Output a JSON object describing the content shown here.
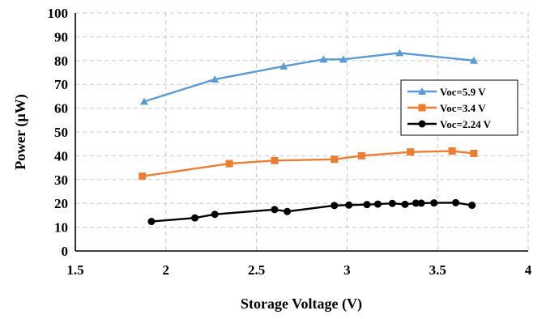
{
  "chart_data": {
    "type": "line",
    "title": "",
    "xlabel": "Storage Voltage (V)",
    "ylabel": "Power (µW)",
    "xlim": [
      1.5,
      4
    ],
    "ylim": [
      0,
      100
    ],
    "x_ticks": [
      1.5,
      2,
      2.5,
      3,
      3.5,
      4
    ],
    "x_tick_labels": [
      "1.5",
      "2",
      "2.5",
      "3",
      "3.5",
      "4"
    ],
    "y_ticks": [
      0,
      10,
      20,
      30,
      40,
      50,
      60,
      70,
      80,
      90,
      100
    ],
    "y_tick_labels": [
      "0",
      "10",
      "20",
      "30",
      "40",
      "50",
      "60",
      "70",
      "80",
      "90",
      "100"
    ],
    "grid": true,
    "legend_position": "right",
    "series": [
      {
        "name": "Voc=5.9 V",
        "color": "#5b9bd5",
        "marker": "triangle",
        "x": [
          1.88,
          2.27,
          2.65,
          2.87,
          2.98,
          3.29,
          3.7
        ],
        "y": [
          62.8,
          72.1,
          77.6,
          80.5,
          80.5,
          83.2,
          80.0
        ]
      },
      {
        "name": "Voc=3.4 V",
        "color": "#ed7d31",
        "marker": "square",
        "x": [
          1.87,
          2.35,
          2.6,
          2.93,
          3.08,
          3.35,
          3.58,
          3.7
        ],
        "y": [
          31.4,
          36.7,
          38.0,
          38.5,
          40.0,
          41.6,
          42.0,
          41.0
        ]
      },
      {
        "name": "Voc=2.24 V",
        "color": "#000000",
        "marker": "circle",
        "x": [
          1.92,
          2.16,
          2.27,
          2.6,
          2.67,
          2.93,
          3.01,
          3.11,
          3.17,
          3.25,
          3.32,
          3.38,
          3.41,
          3.48,
          3.6,
          3.69
        ],
        "y": [
          12.4,
          13.9,
          15.4,
          17.4,
          16.6,
          19.1,
          19.3,
          19.5,
          19.7,
          20.0,
          19.6,
          20.1,
          20.1,
          20.2,
          20.3,
          19.2
        ]
      }
    ]
  }
}
